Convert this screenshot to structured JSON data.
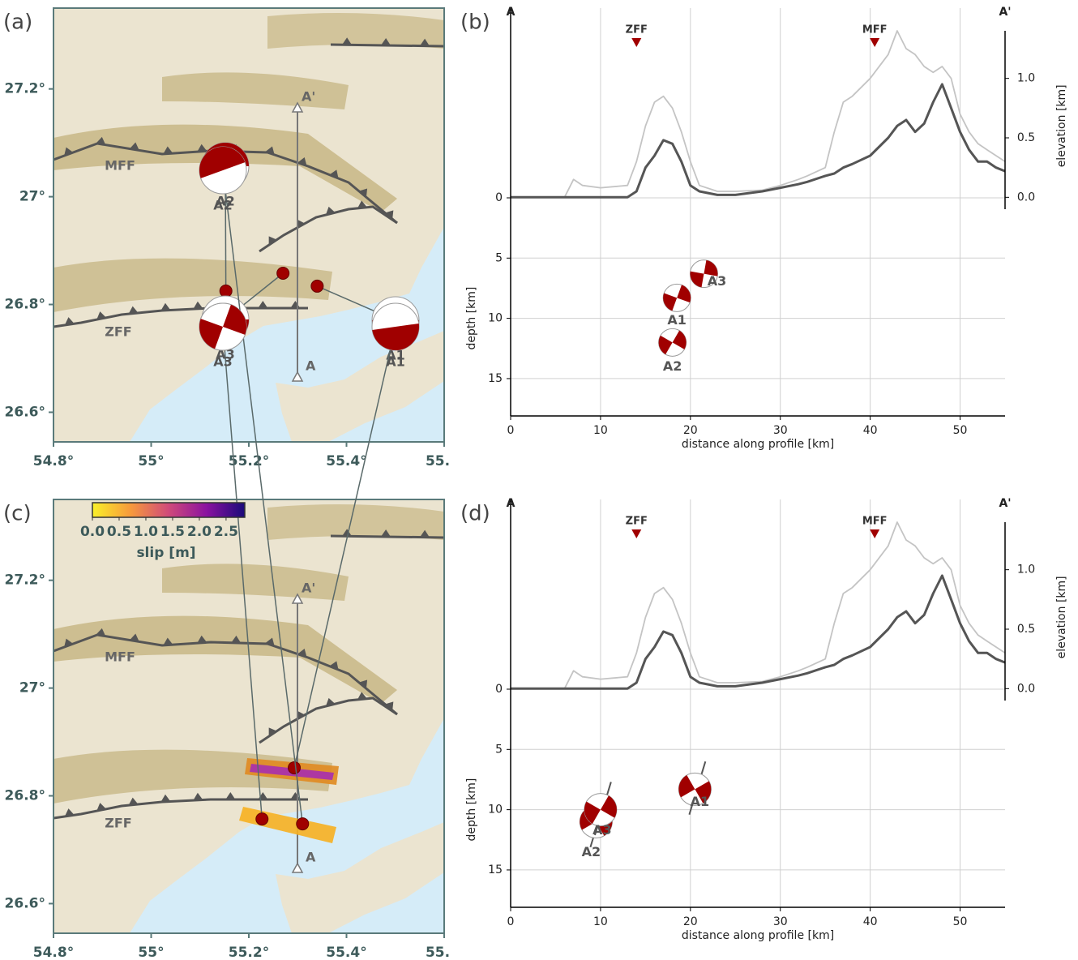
{
  "panels": [
    {
      "kind": "map",
      "label": "(a)",
      "xlim": [
        54.8,
        55.6
      ],
      "ylim": [
        26.545,
        27.35
      ],
      "xticks": [
        {
          "value": 54.8,
          "label": "54.8°"
        },
        {
          "value": 55,
          "label": "55°"
        },
        {
          "value": 55.2,
          "label": "55.2°"
        },
        {
          "value": 55.4,
          "label": "55.4°"
        },
        {
          "value": 55.6,
          "label": "55."
        }
      ],
      "yticks": [
        {
          "value": 26.6,
          "label": "26.6°"
        },
        {
          "value": 26.8,
          "label": "26.8°"
        },
        {
          "value": 27,
          "label": "27°"
        },
        {
          "value": 27.2,
          "label": "27.2°"
        }
      ],
      "faults": [
        "MFF",
        "ZFF"
      ],
      "profile_ends": [
        "A",
        "A'"
      ],
      "events": [
        {
          "name": "A1",
          "lon": 55.34,
          "lat": 26.834
        },
        {
          "name": "A2",
          "lon": 55.153,
          "lat": 26.825
        },
        {
          "name": "A3",
          "lon": 55.27,
          "lat": 26.858
        }
      ]
    },
    {
      "kind": "profile",
      "label": "(b)",
      "ends": [
        "A",
        "A'"
      ],
      "xlabel": "distance along profile [km]",
      "ylabel": "depth [km]",
      "y2label": "elevation [km]",
      "xlim": [
        0,
        55
      ],
      "xticks": [
        0,
        10,
        20,
        30,
        40,
        50
      ],
      "ylim": [
        0,
        18.1
      ],
      "yticks": [
        0,
        5,
        10,
        15
      ],
      "y2lim": [
        -0.1,
        1.4
      ],
      "y2ticks": [
        {
          "value": 0,
          "label": "0.0"
        },
        0.5,
        {
          "value": 1,
          "label": "1.0"
        }
      ],
      "grid": true,
      "fault_markers": [
        {
          "name": "ZFF",
          "distance": 14
        },
        {
          "name": "MFF",
          "distance": 40.5
        }
      ],
      "distance": [
        0,
        6,
        7,
        8,
        10,
        13,
        14,
        15,
        16,
        17,
        18,
        19,
        20,
        21,
        23,
        25,
        28,
        30,
        32,
        33,
        35,
        36,
        37,
        38,
        40,
        42,
        43,
        44,
        45,
        46,
        47,
        48,
        49,
        50,
        51,
        52,
        53,
        54,
        55
      ],
      "profiles": [
        {
          "color": "#c4c4c4",
          "values": [
            0,
            0,
            0.15,
            0.1,
            0.08,
            0.1,
            0.3,
            0.6,
            0.8,
            0.85,
            0.75,
            0.55,
            0.3,
            0.1,
            0.05,
            0.05,
            0.06,
            0.1,
            0.15,
            0.18,
            0.25,
            0.55,
            0.8,
            0.85,
            1.0,
            1.2,
            1.4,
            1.25,
            1.2,
            1.1,
            1.05,
            1.1,
            1.0,
            0.7,
            0.55,
            0.45,
            0.4,
            0.35,
            0.3
          ]
        },
        {
          "color": "#555555",
          "values": [
            0,
            0,
            0,
            0,
            0,
            0,
            0.05,
            0.25,
            0.35,
            0.48,
            0.45,
            0.3,
            0.1,
            0.05,
            0.02,
            0.02,
            0.05,
            0.08,
            0.11,
            0.13,
            0.18,
            0.2,
            0.25,
            0.28,
            0.35,
            0.5,
            0.6,
            0.65,
            0.55,
            0.62,
            0.8,
            0.95,
            0.75,
            0.55,
            0.4,
            0.3,
            0.3,
            0.25,
            0.22
          ]
        }
      ],
      "events": [
        {
          "name": "A1",
          "distance": 18.5,
          "depth": 8.3
        },
        {
          "name": "A2",
          "distance": 18,
          "depth": 12
        },
        {
          "name": "A3",
          "distance": 21.5,
          "depth": 6.3
        }
      ]
    },
    {
      "kind": "map",
      "label": "(c)",
      "xlim": [
        54.8,
        55.6
      ],
      "ylim": [
        26.545,
        27.35
      ],
      "xticks": [
        {
          "value": 54.8,
          "label": "54.8°"
        },
        {
          "value": 55,
          "label": "55°"
        },
        {
          "value": 55.2,
          "label": "55.2°"
        },
        {
          "value": 55.4,
          "label": "55.4°"
        },
        {
          "value": 55.6,
          "label": "55."
        }
      ],
      "yticks": [
        {
          "value": 26.6,
          "label": "26.6°"
        },
        {
          "value": 26.8,
          "label": "26.8°"
        },
        {
          "value": 27,
          "label": "27°"
        },
        {
          "value": 27.2,
          "label": "27.2°"
        }
      ],
      "faults": [
        "MFF",
        "ZFF"
      ],
      "profile_ends": [
        "A",
        "A'"
      ],
      "colorbar": {
        "label": "slip [m]",
        "lim": [
          0,
          2.85
        ],
        "ticks": [
          {
            "value": 0,
            "label": "0.0"
          },
          0.5,
          {
            "value": 1,
            "label": "1.0"
          },
          1.5,
          {
            "value": 2,
            "label": "2.0"
          },
          2.5
        ]
      },
      "events": [
        {
          "name": "A1",
          "lon": 55.293,
          "lat": 26.852
        },
        {
          "name": "A2",
          "lon": 55.31,
          "lat": 26.748
        },
        {
          "name": "A3",
          "lon": 55.227,
          "lat": 26.757
        }
      ]
    },
    {
      "kind": "profile",
      "label": "(d)",
      "ends": [
        "A",
        "A'"
      ],
      "xlabel": "distance along profile [km]",
      "ylabel": "depth [km]",
      "y2label": "elevation [km]",
      "xlim": [
        0,
        55
      ],
      "xticks": [
        0,
        10,
        20,
        30,
        40,
        50
      ],
      "ylim": [
        0,
        18.1
      ],
      "yticks": [
        0,
        5,
        10,
        15
      ],
      "y2lim": [
        -0.1,
        1.4
      ],
      "y2ticks": [
        {
          "value": 0,
          "label": "0.0"
        },
        0.5,
        {
          "value": 1,
          "label": "1.0"
        }
      ],
      "grid": true,
      "fault_markers": [
        {
          "name": "ZFF",
          "distance": 14
        },
        {
          "name": "MFF",
          "distance": 40.5
        }
      ],
      "distance": [
        0,
        6,
        7,
        8,
        10,
        13,
        14,
        15,
        16,
        17,
        18,
        19,
        20,
        21,
        23,
        25,
        28,
        30,
        32,
        33,
        35,
        36,
        37,
        38,
        40,
        42,
        43,
        44,
        45,
        46,
        47,
        48,
        49,
        50,
        51,
        52,
        53,
        54,
        55
      ],
      "profiles": [
        {
          "color": "#c4c4c4",
          "values": [
            0,
            0,
            0.15,
            0.1,
            0.08,
            0.1,
            0.3,
            0.6,
            0.8,
            0.85,
            0.75,
            0.55,
            0.3,
            0.1,
            0.05,
            0.05,
            0.06,
            0.1,
            0.15,
            0.18,
            0.25,
            0.55,
            0.8,
            0.85,
            1.0,
            1.2,
            1.4,
            1.25,
            1.2,
            1.1,
            1.05,
            1.1,
            1.0,
            0.7,
            0.55,
            0.45,
            0.4,
            0.35,
            0.3
          ]
        },
        {
          "color": "#555555",
          "values": [
            0,
            0,
            0,
            0,
            0,
            0,
            0.05,
            0.25,
            0.35,
            0.48,
            0.45,
            0.3,
            0.1,
            0.05,
            0.02,
            0.02,
            0.05,
            0.08,
            0.11,
            0.13,
            0.18,
            0.2,
            0.25,
            0.28,
            0.35,
            0.5,
            0.6,
            0.65,
            0.55,
            0.62,
            0.8,
            0.95,
            0.75,
            0.55,
            0.4,
            0.3,
            0.3,
            0.25,
            0.22
          ]
        }
      ],
      "events": [
        {
          "name": "A1",
          "distance": 20.5,
          "depth": 8.3
        },
        {
          "name": "A2",
          "distance": 9.5,
          "depth": 11
        },
        {
          "name": "A3",
          "distance": 10,
          "depth": 10
        }
      ]
    }
  ]
}
